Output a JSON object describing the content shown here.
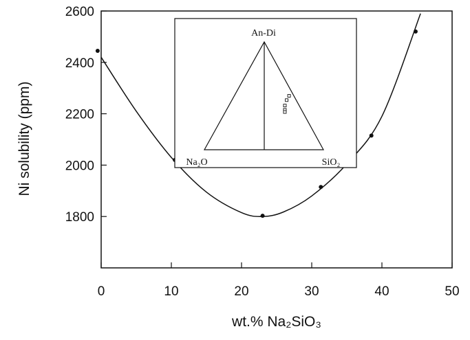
{
  "chart_data": {
    "type": "scatter",
    "xlabel": "wt.% Na₂SiO₃",
    "ylabel": "Ni solubility (ppm)",
    "xlim": [
      0,
      50
    ],
    "ylim": [
      1600,
      2600
    ],
    "x_ticks": [
      0,
      10,
      20,
      30,
      40,
      50
    ],
    "y_ticks": [
      1800,
      2000,
      2200,
      2400,
      2600
    ],
    "grid": false,
    "series": [
      {
        "points": [
          {
            "x": -0.5,
            "y": 2445
          },
          {
            "x": 10.5,
            "y": 2020
          },
          {
            "x": 23,
            "y": 1803
          },
          {
            "x": 31.3,
            "y": 1915
          },
          {
            "x": 38.5,
            "y": 2115
          },
          {
            "x": 44.8,
            "y": 2520
          }
        ]
      }
    ],
    "fit_curve": [
      {
        "x": 0,
        "y": 2420
      },
      {
        "x": 5,
        "y": 2210
      },
      {
        "x": 10,
        "y": 2030
      },
      {
        "x": 15,
        "y": 1895
      },
      {
        "x": 20,
        "y": 1815
      },
      {
        "x": 23,
        "y": 1800
      },
      {
        "x": 26,
        "y": 1818
      },
      {
        "x": 30,
        "y": 1880
      },
      {
        "x": 35,
        "y": 2005
      },
      {
        "x": 40,
        "y": 2190
      },
      {
        "x": 45.5,
        "y": 2590
      }
    ],
    "inset": {
      "type": "ternary",
      "vertex_labels": {
        "top": "An-Di",
        "left": "Na₂O",
        "right": "SiO₂"
      },
      "compositions": [
        {
          "na2o": 0.04,
          "sio2": 0.46
        },
        {
          "na2o": 0.08,
          "sio2": 0.46
        },
        {
          "na2o": 0.12,
          "sio2": 0.47
        },
        {
          "na2o": 0.14,
          "sio2": 0.49
        },
        {
          "na2o": 0.15,
          "sio2": 0.5
        }
      ]
    }
  }
}
